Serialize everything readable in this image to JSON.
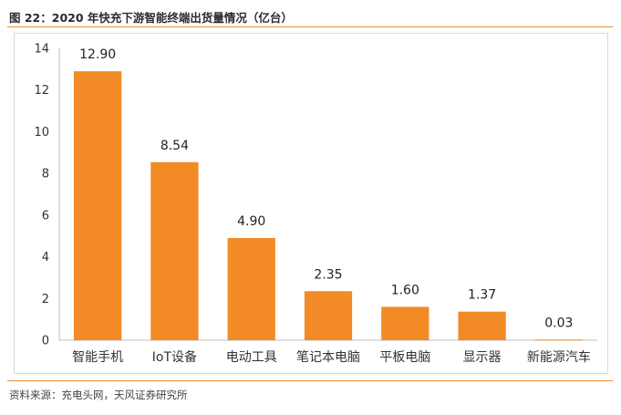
{
  "figure": {
    "title": "图 22：2020 年快充下游智能终端出货量情况（亿台）",
    "source": "资料来源：充电头网，天风证券研究所"
  },
  "chart_data": {
    "type": "bar",
    "categories": [
      "智能手机",
      "IoT设备",
      "电动工具",
      "笔记本电脑",
      "平板电脑",
      "显示器",
      "新能源汽车"
    ],
    "values": [
      12.9,
      8.54,
      4.9,
      2.35,
      1.6,
      1.37,
      0.03
    ],
    "value_labels": [
      "12.90",
      "8.54",
      "4.90",
      "2.35",
      "1.60",
      "1.37",
      "0.03"
    ],
    "yticks": [
      "0",
      "2",
      "4",
      "6",
      "8",
      "10",
      "12",
      "14"
    ],
    "ylim": [
      0,
      14
    ],
    "bar_color": "#f28a25",
    "grid": false,
    "legend": "none"
  }
}
